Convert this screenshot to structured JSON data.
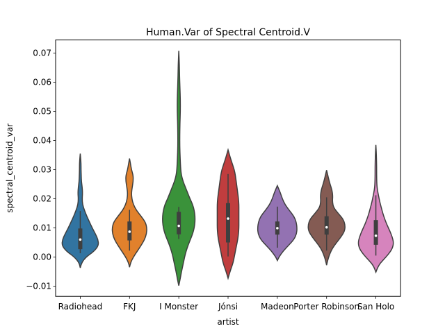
{
  "chart_data": {
    "type": "violin",
    "title": "Human.Var of Spectral Centroid.V",
    "xlabel": "artist",
    "ylabel": "spectral_centroid_var",
    "ylim": [
      -0.0135,
      0.0745
    ],
    "yticks": [
      -0.01,
      0.0,
      0.01,
      0.02,
      0.03,
      0.04,
      0.05,
      0.06,
      0.07
    ],
    "ytick_labels": [
      "−0.01",
      "0.00",
      "0.01",
      "0.02",
      "0.03",
      "0.04",
      "0.05",
      "0.06",
      "0.07"
    ],
    "grid": false,
    "categories": [
      "Radiohead",
      "FKJ",
      "I Monster",
      "Jónsi",
      "Madeon",
      "Porter Robinson",
      "San Holo"
    ],
    "series": [
      {
        "category": "Radiohead",
        "color": "#3274a1",
        "min": -0.0037,
        "max": 0.0355,
        "q1": 0.0027,
        "median": 0.006,
        "q3": 0.0098,
        "whisker_low": 0.0013,
        "whisker_high": 0.0158,
        "density": [
          [
            -0.0037,
            0
          ],
          [
            -0.002,
            0.06
          ],
          [
            0.0,
            0.3
          ],
          [
            0.002,
            0.72
          ],
          [
            0.004,
            0.95
          ],
          [
            0.006,
            0.92
          ],
          [
            0.008,
            0.78
          ],
          [
            0.01,
            0.62
          ],
          [
            0.012,
            0.48
          ],
          [
            0.014,
            0.34
          ],
          [
            0.016,
            0.22
          ],
          [
            0.018,
            0.12
          ],
          [
            0.02,
            0.1
          ],
          [
            0.022,
            0.12
          ],
          [
            0.024,
            0.1
          ],
          [
            0.026,
            0.06
          ],
          [
            0.028,
            0.05
          ],
          [
            0.03,
            0.04
          ],
          [
            0.032,
            0.04
          ],
          [
            0.034,
            0.02
          ],
          [
            0.0355,
            0
          ]
        ]
      },
      {
        "category": "FKJ",
        "color": "#e1812c",
        "min": -0.0035,
        "max": 0.0338,
        "q1": 0.0057,
        "median": 0.0087,
        "q3": 0.0122,
        "whisker_low": 0.0022,
        "whisker_high": 0.0162,
        "density": [
          [
            -0.0035,
            0
          ],
          [
            -0.002,
            0.05
          ],
          [
            0.0,
            0.2
          ],
          [
            0.002,
            0.4
          ],
          [
            0.004,
            0.6
          ],
          [
            0.006,
            0.78
          ],
          [
            0.008,
            0.88
          ],
          [
            0.01,
            0.9
          ],
          [
            0.012,
            0.82
          ],
          [
            0.014,
            0.6
          ],
          [
            0.016,
            0.36
          ],
          [
            0.018,
            0.2
          ],
          [
            0.02,
            0.12
          ],
          [
            0.022,
            0.1
          ],
          [
            0.024,
            0.14
          ],
          [
            0.026,
            0.19
          ],
          [
            0.028,
            0.19
          ],
          [
            0.03,
            0.1
          ],
          [
            0.032,
            0.05
          ],
          [
            0.0338,
            0
          ]
        ]
      },
      {
        "category": "I Monster",
        "color": "#3a923a",
        "min": -0.0098,
        "max": 0.0708,
        "q1": 0.0078,
        "median": 0.0107,
        "q3": 0.0155,
        "whisker_low": 0.0062,
        "whisker_high": 0.0172,
        "density": [
          [
            -0.0098,
            0
          ],
          [
            -0.008,
            0.06
          ],
          [
            -0.005,
            0.14
          ],
          [
            -0.002,
            0.24
          ],
          [
            0.0,
            0.3
          ],
          [
            0.002,
            0.38
          ],
          [
            0.004,
            0.48
          ],
          [
            0.006,
            0.6
          ],
          [
            0.008,
            0.72
          ],
          [
            0.01,
            0.8
          ],
          [
            0.012,
            0.84
          ],
          [
            0.014,
            0.84
          ],
          [
            0.016,
            0.8
          ],
          [
            0.018,
            0.72
          ],
          [
            0.02,
            0.58
          ],
          [
            0.022,
            0.46
          ],
          [
            0.024,
            0.34
          ],
          [
            0.026,
            0.22
          ],
          [
            0.028,
            0.14
          ],
          [
            0.03,
            0.1
          ],
          [
            0.034,
            0.07
          ],
          [
            0.038,
            0.05
          ],
          [
            0.042,
            0.05
          ],
          [
            0.046,
            0.06
          ],
          [
            0.05,
            0.08
          ],
          [
            0.054,
            0.08
          ],
          [
            0.058,
            0.06
          ],
          [
            0.062,
            0.04
          ],
          [
            0.066,
            0.03
          ],
          [
            0.0708,
            0
          ]
        ]
      },
      {
        "category": "Jónsi",
        "color": "#c03d3e",
        "min": -0.0073,
        "max": 0.0368,
        "q1": 0.005,
        "median": 0.0132,
        "q3": 0.0185,
        "whisker_low": 0.0002,
        "whisker_high": 0.0285,
        "density": [
          [
            -0.0073,
            0
          ],
          [
            -0.005,
            0.1
          ],
          [
            -0.002,
            0.26
          ],
          [
            0.0,
            0.32
          ],
          [
            0.002,
            0.38
          ],
          [
            0.004,
            0.44
          ],
          [
            0.006,
            0.5
          ],
          [
            0.008,
            0.54
          ],
          [
            0.01,
            0.56
          ],
          [
            0.012,
            0.56
          ],
          [
            0.014,
            0.56
          ],
          [
            0.016,
            0.56
          ],
          [
            0.018,
            0.56
          ],
          [
            0.02,
            0.54
          ],
          [
            0.022,
            0.5
          ],
          [
            0.024,
            0.46
          ],
          [
            0.026,
            0.42
          ],
          [
            0.028,
            0.38
          ],
          [
            0.03,
            0.32
          ],
          [
            0.032,
            0.22
          ],
          [
            0.034,
            0.12
          ],
          [
            0.0368,
            0
          ]
        ]
      },
      {
        "category": "Madeon",
        "color": "#9372b2",
        "min": -0.0012,
        "max": 0.0245,
        "q1": 0.0077,
        "median": 0.0099,
        "q3": 0.0122,
        "whisker_low": 0.0032,
        "whisker_high": 0.0173,
        "density": [
          [
            -0.0012,
            0
          ],
          [
            0.0,
            0.08
          ],
          [
            0.002,
            0.3
          ],
          [
            0.004,
            0.58
          ],
          [
            0.006,
            0.86
          ],
          [
            0.008,
            1.0
          ],
          [
            0.01,
            1.02
          ],
          [
            0.012,
            0.98
          ],
          [
            0.014,
            0.86
          ],
          [
            0.016,
            0.62
          ],
          [
            0.018,
            0.4
          ],
          [
            0.02,
            0.26
          ],
          [
            0.022,
            0.16
          ],
          [
            0.0245,
            0
          ]
        ]
      },
      {
        "category": "Porter Robinson",
        "color": "#845b53",
        "min": -0.0028,
        "max": 0.0298,
        "q1": 0.0077,
        "median": 0.0102,
        "q3": 0.014,
        "whisker_low": 0.0022,
        "whisker_high": 0.0205,
        "density": [
          [
            -0.0028,
            0
          ],
          [
            -0.001,
            0.06
          ],
          [
            0.001,
            0.16
          ],
          [
            0.003,
            0.3
          ],
          [
            0.005,
            0.52
          ],
          [
            0.007,
            0.76
          ],
          [
            0.009,
            0.94
          ],
          [
            0.011,
            0.96
          ],
          [
            0.013,
            0.86
          ],
          [
            0.015,
            0.6
          ],
          [
            0.017,
            0.36
          ],
          [
            0.019,
            0.3
          ],
          [
            0.021,
            0.32
          ],
          [
            0.023,
            0.28
          ],
          [
            0.025,
            0.18
          ],
          [
            0.027,
            0.1
          ],
          [
            0.0298,
            0
          ]
        ]
      },
      {
        "category": "San Holo",
        "color": "#d684bd",
        "min": -0.0052,
        "max": 0.0385,
        "q1": 0.0042,
        "median": 0.0073,
        "q3": 0.0127,
        "whisker_low": 0.0005,
        "whisker_high": 0.0212,
        "density": [
          [
            -0.0052,
            0
          ],
          [
            -0.003,
            0.12
          ],
          [
            -0.001,
            0.38
          ],
          [
            0.001,
            0.66
          ],
          [
            0.003,
            0.86
          ],
          [
            0.005,
            0.92
          ],
          [
            0.007,
            0.84
          ],
          [
            0.009,
            0.72
          ],
          [
            0.011,
            0.58
          ],
          [
            0.013,
            0.46
          ],
          [
            0.015,
            0.36
          ],
          [
            0.017,
            0.28
          ],
          [
            0.019,
            0.2
          ],
          [
            0.021,
            0.14
          ],
          [
            0.023,
            0.08
          ],
          [
            0.025,
            0.05
          ],
          [
            0.028,
            0.04
          ],
          [
            0.031,
            0.04
          ],
          [
            0.034,
            0.03
          ],
          [
            0.036,
            0.02
          ],
          [
            0.0385,
            0
          ]
        ]
      }
    ]
  }
}
